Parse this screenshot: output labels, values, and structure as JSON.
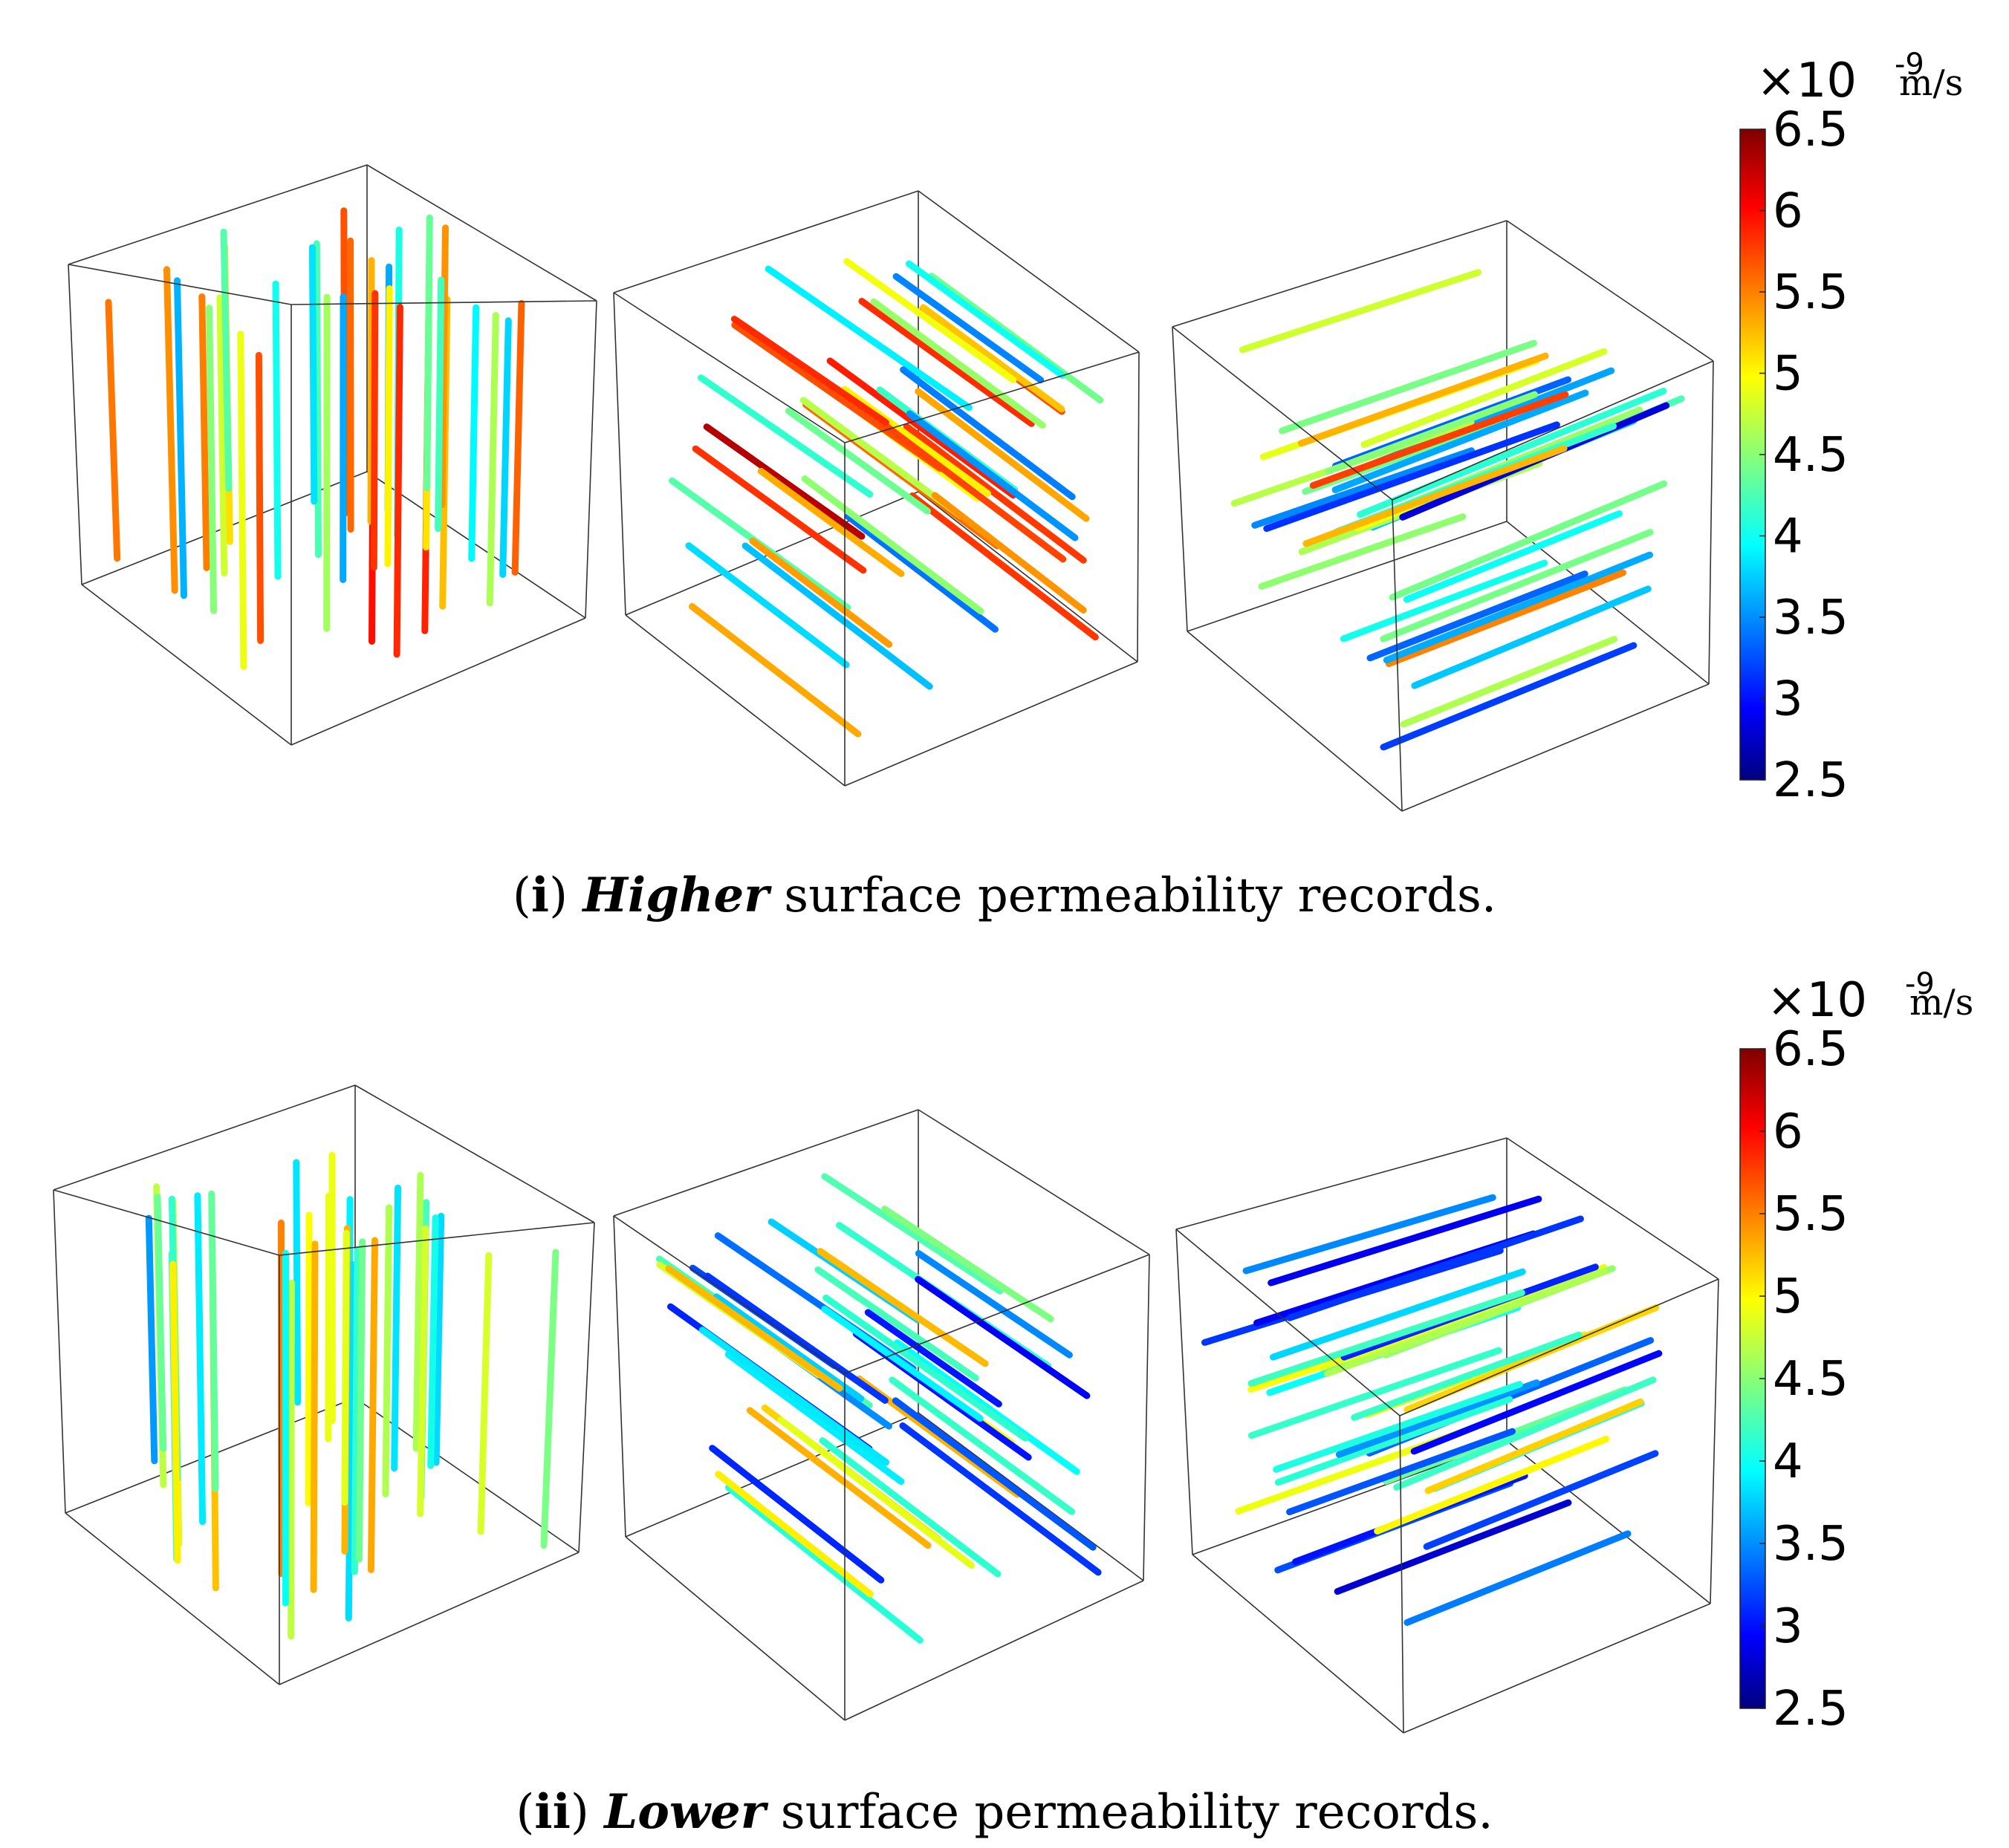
{
  "chart_data": {
    "type": "3d-line-field",
    "colormap": "jet",
    "colorbar": {
      "min": 2.5,
      "max": 6.5,
      "ticks": [
        "6.5",
        "6",
        "5.5",
        "5",
        "4.5",
        "4",
        "3.5",
        "3",
        "2.5"
      ],
      "multiplier": "×10",
      "exponent": "-9",
      "unit": "m/s"
    },
    "panels": [
      {
        "id": "i",
        "label": "(i)",
        "emphasis": "Higher",
        "caption_rest": " surface permeability records.",
        "views": [
          {
            "orientation": "vertical",
            "value_range": [
              3.6,
              6.1
            ],
            "count": 34
          },
          {
            "orientation": "diagonal",
            "value_range": [
              3.3,
              6.3
            ],
            "count": 36
          },
          {
            "orientation": "horizontal",
            "value_range": [
              2.8,
              5.8
            ],
            "count": 34
          }
        ]
      },
      {
        "id": "ii",
        "label": "(ii)",
        "emphasis": "Lower",
        "caption_rest": " surface permeability records.",
        "views": [
          {
            "orientation": "vertical",
            "value_range": [
              3.4,
              5.5
            ],
            "count": 34
          },
          {
            "orientation": "diagonal",
            "value_range": [
              2.8,
              5.4
            ],
            "count": 36
          },
          {
            "orientation": "horizontal",
            "value_range": [
              2.8,
              5.2
            ],
            "count": 34
          }
        ]
      }
    ]
  }
}
